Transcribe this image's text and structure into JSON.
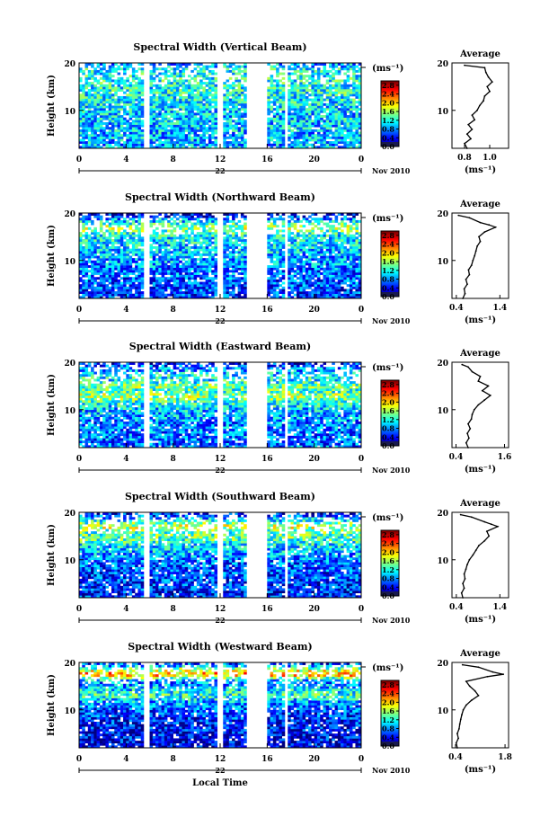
{
  "chart_data": [
    {
      "type": "heatmap",
      "title": "Spectral Width (Vertical Beam)",
      "ylabel": "Height (km)",
      "xlim": [
        0,
        24
      ],
      "ylim": [
        2,
        20
      ],
      "x_ticks": [
        "0",
        "4",
        "8",
        "12",
        "16",
        "20",
        "0"
      ],
      "y_ticks": [
        "10",
        "20"
      ],
      "date_label": "22",
      "month_year": "Nov 2010",
      "colorbar": {
        "unit": "(ms⁻¹)",
        "range": [
          0.0,
          3.0
        ],
        "tick_labels": [
          "0.0",
          "0.4",
          "0.8",
          "1.2",
          "1.6",
          "2.0",
          "2.4",
          "2.8"
        ]
      },
      "data_gaps_hours": [
        [
          5.5,
          6.0
        ],
        [
          11.8,
          12.3
        ],
        [
          14.3,
          16.0
        ],
        [
          17.4,
          17.8
        ]
      ],
      "average_profile": {
        "title": "Average",
        "xlabel": "(ms⁻¹)",
        "x_ticks": [
          "0.8",
          "1.0"
        ],
        "xlim": [
          0.7,
          1.15
        ],
        "heights_km": [
          2,
          3,
          4,
          5,
          6,
          7,
          8,
          9,
          10,
          11,
          12,
          13,
          14,
          15,
          16,
          17,
          18,
          19,
          19.5
        ],
        "values": [
          0.82,
          0.8,
          0.85,
          0.82,
          0.86,
          0.83,
          0.88,
          0.86,
          0.9,
          0.92,
          0.95,
          0.96,
          1.0,
          0.98,
          1.02,
          0.99,
          0.97,
          0.96,
          0.8
        ]
      }
    },
    {
      "type": "heatmap",
      "title": "Spectral Width (Northward Beam)",
      "ylabel": "Height (km)",
      "xlim": [
        0,
        24
      ],
      "ylim": [
        2,
        20
      ],
      "x_ticks": [
        "0",
        "4",
        "8",
        "12",
        "16",
        "20",
        "0"
      ],
      "y_ticks": [
        "10",
        "20"
      ],
      "date_label": "22",
      "month_year": "Nov 2010",
      "colorbar": {
        "unit": "(ms⁻¹)",
        "range": [
          0.0,
          3.0
        ],
        "tick_labels": [
          "0.0",
          "0.4",
          "0.8",
          "1.2",
          "1.6",
          "2.0",
          "2.4",
          "2.8"
        ]
      },
      "data_gaps_hours": [
        [
          5.5,
          6.0
        ],
        [
          11.8,
          12.3
        ],
        [
          14.3,
          16.0
        ],
        [
          17.4,
          17.8
        ]
      ],
      "average_profile": {
        "title": "Average",
        "xlabel": "(ms⁻¹)",
        "x_ticks": [
          "0.4",
          "1.4"
        ],
        "xlim": [
          0.3,
          1.6
        ],
        "heights_km": [
          2,
          3,
          4,
          5,
          6,
          7,
          8,
          9,
          10,
          11,
          12,
          13,
          14,
          15,
          16,
          17,
          17.5,
          18,
          19,
          19.5
        ],
        "values": [
          0.55,
          0.6,
          0.58,
          0.65,
          0.62,
          0.7,
          0.68,
          0.75,
          0.78,
          0.82,
          0.85,
          0.88,
          0.95,
          0.92,
          1.05,
          1.3,
          1.15,
          0.95,
          0.7,
          0.45
        ]
      }
    },
    {
      "type": "heatmap",
      "title": "Spectral Width (Eastward Beam)",
      "ylabel": "Height (km)",
      "xlim": [
        0,
        24
      ],
      "ylim": [
        2,
        20
      ],
      "x_ticks": [
        "0",
        "4",
        "8",
        "12",
        "16",
        "20",
        "0"
      ],
      "y_ticks": [
        "10",
        "20"
      ],
      "date_label": "22",
      "month_year": "Nov 2010",
      "colorbar": {
        "unit": "(ms⁻¹)",
        "range": [
          0.0,
          3.0
        ],
        "tick_labels": [
          "0.0",
          "0.4",
          "0.8",
          "1.2",
          "1.6",
          "2.0",
          "2.4",
          "2.8"
        ]
      },
      "data_gaps_hours": [
        [
          5.5,
          6.0
        ],
        [
          11.8,
          12.3
        ],
        [
          14.3,
          16.0
        ],
        [
          17.4,
          17.8
        ]
      ],
      "average_profile": {
        "title": "Average",
        "xlabel": "(ms⁻¹)",
        "x_ticks": [
          "0.4",
          "1.6"
        ],
        "xlim": [
          0.3,
          1.7
        ],
        "heights_km": [
          2,
          3,
          4,
          5,
          6,
          7,
          8,
          9,
          10,
          11,
          12,
          13,
          14,
          15,
          16,
          17,
          18,
          19,
          19.5
        ],
        "values": [
          0.7,
          0.65,
          0.72,
          0.68,
          0.75,
          0.7,
          0.78,
          0.8,
          0.85,
          0.95,
          1.1,
          1.25,
          1.05,
          1.2,
          0.95,
          1.0,
          0.8,
          0.7,
          0.55
        ]
      }
    },
    {
      "type": "heatmap",
      "title": "Spectral Width (Southward Beam)",
      "ylabel": "Height (km)",
      "xlim": [
        0,
        24
      ],
      "ylim": [
        2,
        20
      ],
      "x_ticks": [
        "0",
        "4",
        "8",
        "12",
        "16",
        "20",
        "0"
      ],
      "y_ticks": [
        "10",
        "20"
      ],
      "date_label": "22",
      "month_year": "Nov 2010",
      "colorbar": {
        "unit": "(ms⁻¹)",
        "range": [
          0.0,
          3.0
        ],
        "tick_labels": [
          "0.0",
          "0.4",
          "0.8",
          "1.2",
          "1.6",
          "2.0",
          "2.4",
          "2.8"
        ]
      },
      "data_gaps_hours": [
        [
          5.5,
          6.0
        ],
        [
          11.8,
          12.3
        ],
        [
          14.3,
          16.0
        ],
        [
          17.4,
          17.8
        ]
      ],
      "average_profile": {
        "title": "Average",
        "xlabel": "(ms⁻¹)",
        "x_ticks": [
          "0.4",
          "1.4"
        ],
        "xlim": [
          0.3,
          1.6
        ],
        "heights_km": [
          2,
          3,
          4,
          5,
          6,
          7,
          8,
          9,
          10,
          11,
          12,
          13,
          14,
          15,
          16,
          17,
          17.5,
          18,
          19,
          19.5
        ],
        "values": [
          0.55,
          0.52,
          0.58,
          0.55,
          0.6,
          0.58,
          0.62,
          0.65,
          0.7,
          0.78,
          0.85,
          0.92,
          1.05,
          1.15,
          1.1,
          1.35,
          1.2,
          1.05,
          0.75,
          0.5
        ]
      }
    },
    {
      "type": "heatmap",
      "title": "Spectral Width (Westward Beam)",
      "ylabel": "Height (km)",
      "xlabel": "Local Time",
      "xlim": [
        0,
        24
      ],
      "ylim": [
        2,
        20
      ],
      "x_ticks": [
        "0",
        "4",
        "8",
        "12",
        "16",
        "20",
        "0"
      ],
      "y_ticks": [
        "10",
        "20"
      ],
      "date_label": "22",
      "month_year": "Nov 2010",
      "colorbar": {
        "unit": "(ms⁻¹)",
        "range": [
          0.0,
          3.0
        ],
        "tick_labels": [
          "0.0",
          "0.4",
          "0.8",
          "1.2",
          "1.6",
          "2.0",
          "2.4",
          "2.8"
        ]
      },
      "data_gaps_hours": [
        [
          5.5,
          6.0
        ],
        [
          11.8,
          12.3
        ],
        [
          14.3,
          16.0
        ],
        [
          17.4,
          17.8
        ]
      ],
      "average_profile": {
        "title": "Average",
        "xlabel": "(ms⁻¹)",
        "x_ticks": [
          "0.4",
          "1.8"
        ],
        "xlim": [
          0.3,
          1.9
        ],
        "heights_km": [
          2,
          3,
          4,
          5,
          6,
          7,
          8,
          9,
          10,
          11,
          12,
          13,
          14,
          15,
          16,
          17,
          17.5,
          18,
          19,
          19.5
        ],
        "values": [
          0.45,
          0.42,
          0.48,
          0.45,
          0.5,
          0.52,
          0.55,
          0.58,
          0.62,
          0.7,
          0.85,
          1.05,
          0.95,
          0.8,
          0.7,
          1.3,
          1.75,
          1.45,
          1.05,
          0.6
        ]
      }
    }
  ]
}
